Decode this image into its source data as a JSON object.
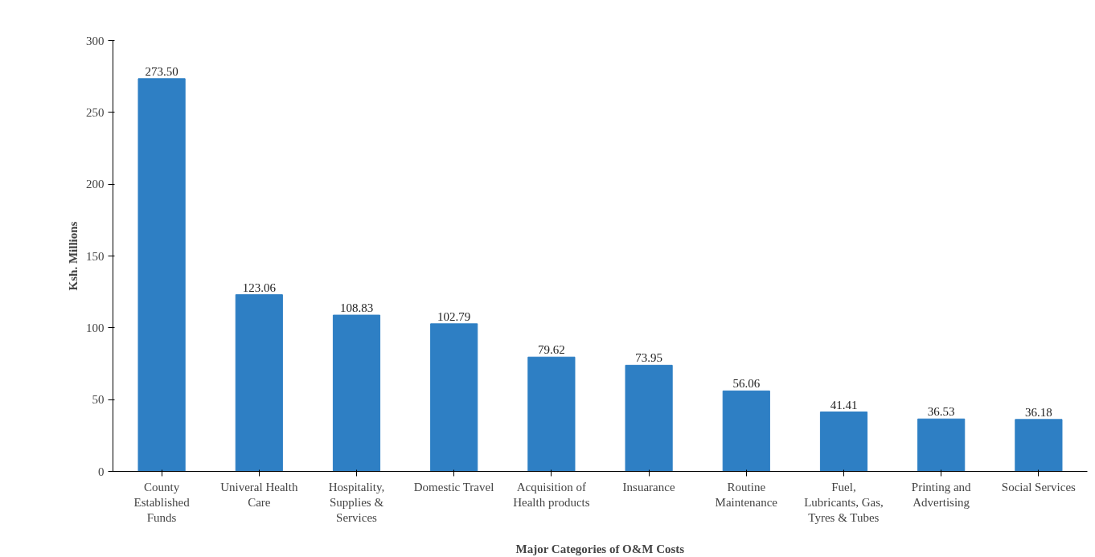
{
  "chart_data": {
    "type": "bar",
    "categories": [
      "County Established Funds",
      "Univeral Health Care",
      "Hospitality, Supplies & Services",
      "Domestic Travel",
      "Acquisition of Health products",
      "Insuarance",
      "Routine Maintenance",
      "Fuel, Lubricants, Gas, Tyres & Tubes",
      "Printing and Advertising",
      "Social Services"
    ],
    "values": [
      273.5,
      123.06,
      108.83,
      102.79,
      79.62,
      73.95,
      56.06,
      41.41,
      36.53,
      36.18
    ],
    "value_labels": [
      "273.50",
      "123.06",
      "108.83",
      "102.79",
      "79.62",
      "73.95",
      "56.06",
      "41.41",
      "36.53",
      "36.18"
    ],
    "color": "#2e7fc4",
    "ylabel": "Ksh. Millions",
    "xlabel": "Major Categories of O&M Costs",
    "ylim": [
      0,
      300
    ],
    "yticks": [
      0,
      50,
      100,
      150,
      200,
      250,
      300
    ],
    "grid": false
  }
}
